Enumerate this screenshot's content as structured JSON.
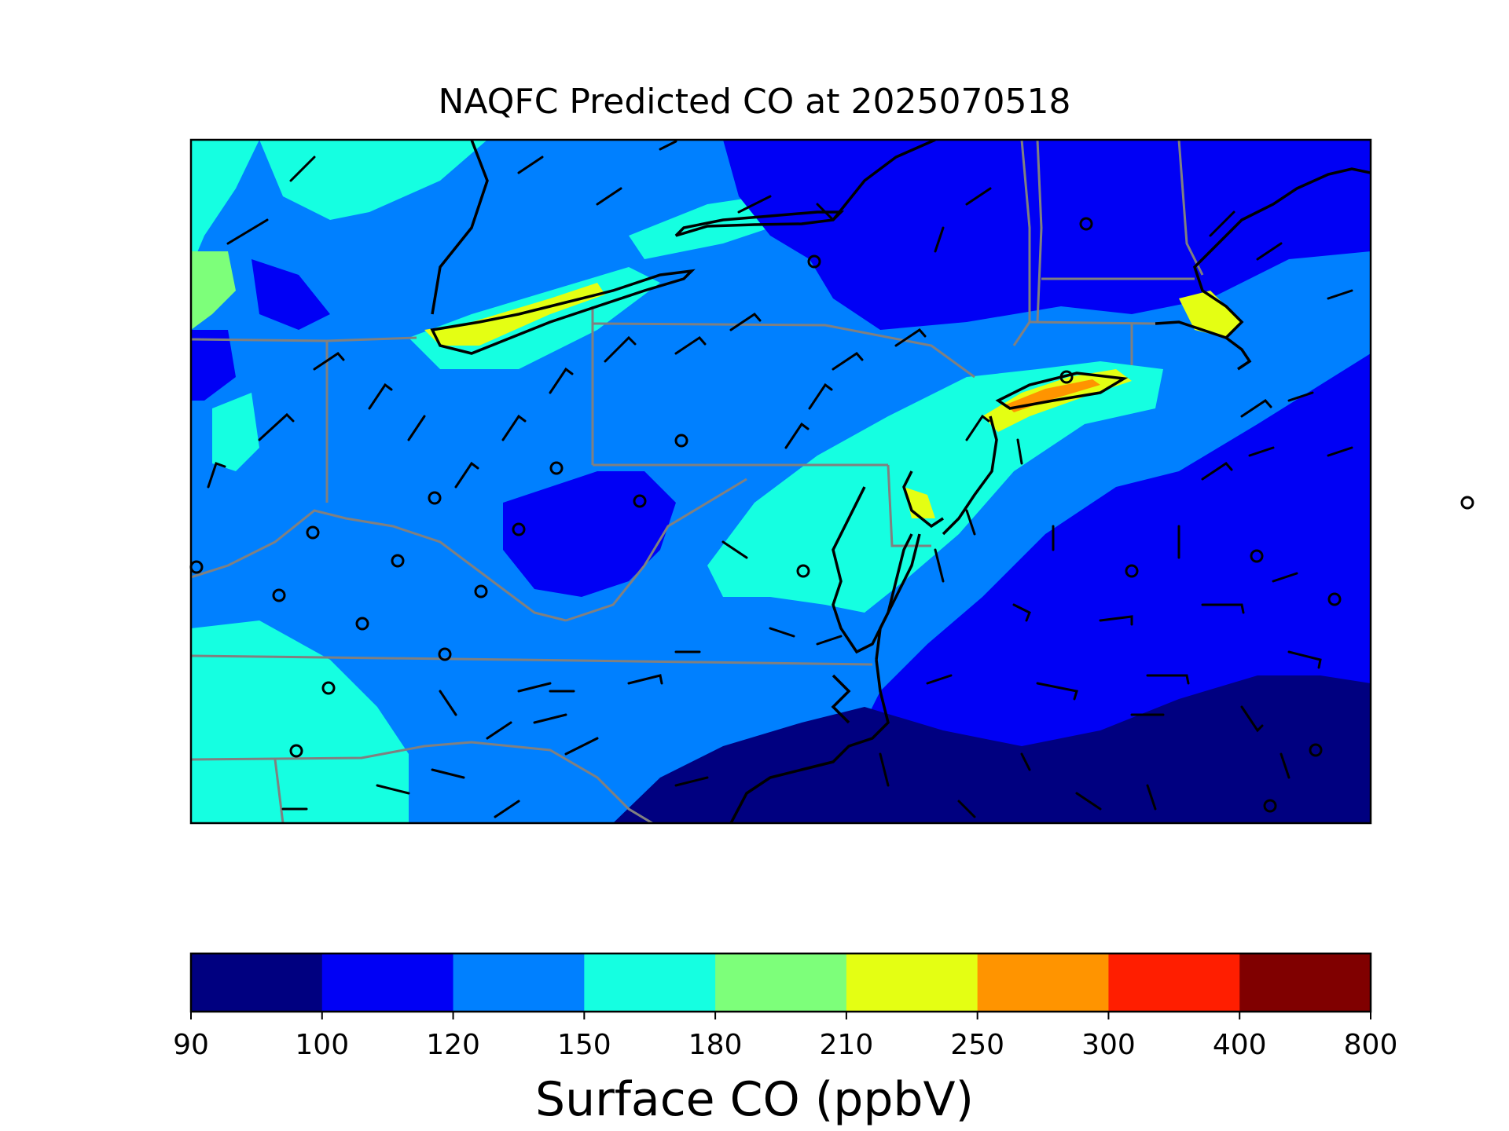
{
  "title": "NAQFC Predicted CO at 2025070518",
  "colorbar": {
    "label": "Surface CO (ppbV)",
    "ticks": [
      "90",
      "100",
      "120",
      "150",
      "180",
      "210",
      "250",
      "300",
      "400",
      "800"
    ],
    "colors": [
      "#000080",
      "#0000f5",
      "#0080ff",
      "#15ffe1",
      "#7dff7a",
      "#e4ff13",
      "#ff9400",
      "#ff1e00",
      "#800000"
    ]
  },
  "map": {
    "colors": {
      "background": "#0080ff",
      "state_borders": "#808080",
      "coastline": "#000000",
      "wind_barbs": "#000000"
    }
  }
}
